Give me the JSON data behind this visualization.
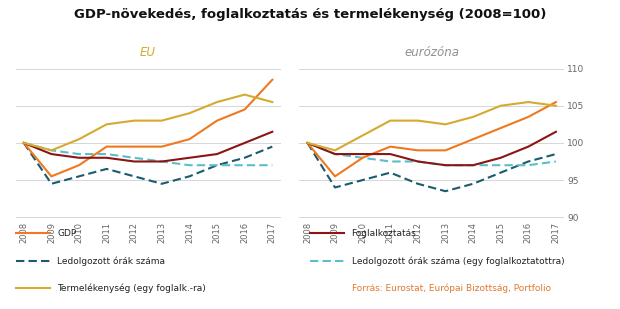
{
  "title": "GDP-növekedés, foglalkoztatás és termelékenység (2008=100)",
  "years": [
    2008,
    2009,
    2010,
    2011,
    2012,
    2013,
    2014,
    2015,
    2016,
    2017
  ],
  "eu": {
    "label": "EU",
    "gdp": [
      100.0,
      95.5,
      97.0,
      99.5,
      99.5,
      99.5,
      100.5,
      103.0,
      104.5,
      108.5
    ],
    "employment": [
      100.0,
      98.5,
      98.0,
      98.0,
      97.5,
      97.5,
      98.0,
      98.5,
      100.0,
      101.5
    ],
    "hours_total": [
      100.0,
      94.5,
      95.5,
      96.5,
      95.5,
      94.5,
      95.5,
      97.0,
      98.0,
      99.5
    ],
    "hours_per": [
      100.0,
      99.0,
      98.5,
      98.5,
      98.0,
      97.5,
      97.0,
      97.0,
      97.0,
      97.0
    ],
    "productivity": [
      100.0,
      99.0,
      100.5,
      102.5,
      103.0,
      103.0,
      104.0,
      105.5,
      106.5,
      105.5
    ]
  },
  "ez": {
    "label": "eurózóna",
    "gdp": [
      100.0,
      95.5,
      98.0,
      99.5,
      99.0,
      99.0,
      100.5,
      102.0,
      103.5,
      105.5
    ],
    "employment": [
      100.0,
      98.5,
      98.5,
      98.5,
      97.5,
      97.0,
      97.0,
      98.0,
      99.5,
      101.5
    ],
    "hours_total": [
      100.0,
      94.0,
      95.0,
      96.0,
      94.5,
      93.5,
      94.5,
      96.0,
      97.5,
      98.5
    ],
    "hours_per": [
      100.0,
      98.5,
      98.0,
      97.5,
      97.5,
      97.0,
      97.0,
      97.0,
      97.0,
      97.5
    ],
    "productivity": [
      100.0,
      99.0,
      101.0,
      103.0,
      103.0,
      102.5,
      103.5,
      105.0,
      105.5,
      105.0
    ]
  },
  "ylim": [
    89.5,
    110.5
  ],
  "yticks": [
    90,
    95,
    100,
    105,
    110
  ],
  "colors": {
    "gdp": "#F07820",
    "employment": "#8B1515",
    "hours_total": "#1A5C6E",
    "hours_per": "#5BBEC8",
    "productivity": "#D4AA30"
  },
  "label_eu": "EU",
  "label_ez": "eurózóna",
  "label_eu_color": "#D4AA30",
  "label_ez_color": "#909090",
  "legend": {
    "gdp": "GDP",
    "employment": "Foglalkoztatás",
    "hours_total": "Ledolgozott órák száma",
    "hours_per": "Ledolgozott órák száma (egy foglalkoztatottra)",
    "productivity": "Termelékenység (egy foglalk.-ra)"
  },
  "source": "Forrás: Eurostat, Európai Bizottság, Portfolio",
  "source_color": "#E07830",
  "bg_color": "#FFFFFF",
  "grid_color": "#D0D0D0",
  "tick_color": "#666666",
  "title_color": "#111111"
}
